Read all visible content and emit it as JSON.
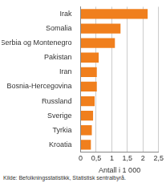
{
  "chart_data": {
    "type": "bar",
    "orientation": "horizontal",
    "categories": [
      "Irak",
      "Somalia",
      "Serbia og Montenegro",
      "Pakistan",
      "Iran",
      "Bosnia-Hercegovina",
      "Russland",
      "Sverige",
      "Tyrkia",
      "Kroatia"
    ],
    "values": [
      2.15,
      1.28,
      1.1,
      0.58,
      0.52,
      0.52,
      0.45,
      0.4,
      0.36,
      0.33
    ],
    "color": "#f07f1d",
    "x_label": "Antall i 1 000",
    "xlim": [
      0,
      2.5
    ],
    "xticks": [
      0,
      {
        "value": 0.5,
        "label": "0,5"
      },
      1,
      {
        "value": 1.5,
        "label": "1,5"
      },
      2,
      {
        "value": 2.5,
        "label": "2,5"
      }
    ],
    "grid": true,
    "source": "Kilde: Befolkningsstatistikk, Statistisk sentralbyrå."
  }
}
